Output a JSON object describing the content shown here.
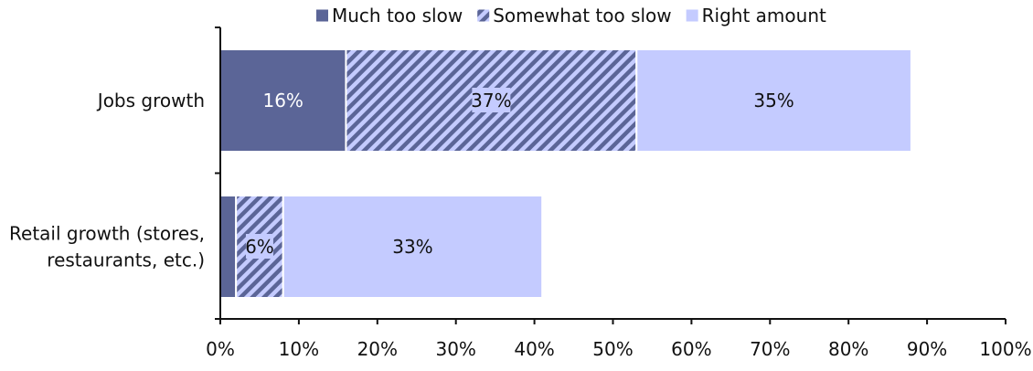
{
  "chart_data": {
    "type": "bar",
    "orientation": "horizontal",
    "stacked": true,
    "title": "",
    "xlabel": "",
    "ylabel": "",
    "xlim": [
      0,
      100
    ],
    "x_ticks": [
      "0%",
      "10%",
      "20%",
      "30%",
      "40%",
      "50%",
      "60%",
      "70%",
      "80%",
      "90%",
      "100%"
    ],
    "legend_position": "top",
    "categories": [
      "Jobs growth",
      "Retail growth (stores, restaurants, etc.)"
    ],
    "category_label_lines": [
      [
        "Jobs growth"
      ],
      [
        "Retail growth (stores,",
        "restaurants, etc.)"
      ]
    ],
    "series": [
      {
        "name": "Much too slow",
        "values": [
          16,
          2
        ],
        "labels": [
          "16%",
          ""
        ],
        "color": "#5b6597",
        "pattern": "solid",
        "label_color": "#ffffff"
      },
      {
        "name": "Somewhat too slow",
        "values": [
          37,
          6
        ],
        "labels": [
          "37%",
          "6%"
        ],
        "color": "#5b6597",
        "pattern_bg": "#c4cbff",
        "pattern": "diagonal-stripes",
        "label_color": "#111111"
      },
      {
        "name": "Right amount",
        "values": [
          35,
          33
        ],
        "labels": [
          "35%",
          "33%"
        ],
        "color": "#c4cbff",
        "pattern": "solid",
        "label_color": "#111111"
      }
    ],
    "grid": false
  }
}
